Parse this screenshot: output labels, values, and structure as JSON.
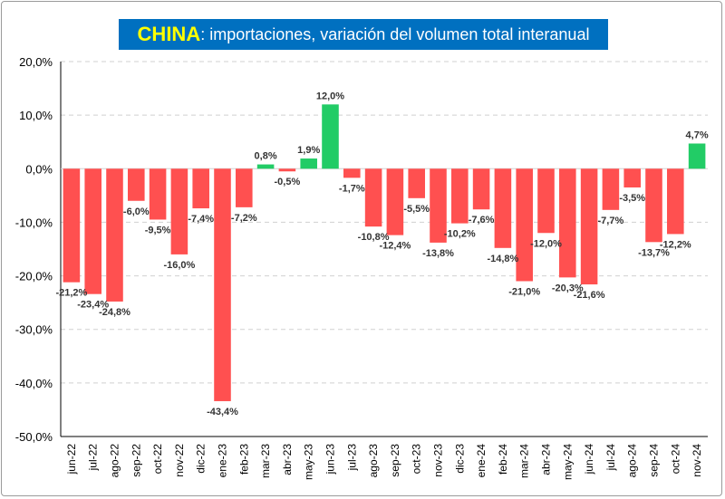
{
  "chart_data": {
    "type": "bar",
    "title_country": "CHINA",
    "title_rest": ": importaciones, variación del volumen total interanual",
    "ylim": [
      -50,
      20
    ],
    "yticks": [
      "20,0%",
      "10,0%",
      "0,0%",
      "-10,0%",
      "-20,0%",
      "-30,0%",
      "-40,0%",
      "-50,0%"
    ],
    "ytick_values": [
      20,
      10,
      0,
      -10,
      -20,
      -30,
      -40,
      -50
    ],
    "grid": "horizontal dashed",
    "categories": [
      "jun-22",
      "jul-22",
      "ago-22",
      "sep-22",
      "oct-22",
      "nov-22",
      "dic-22",
      "ene-23",
      "feb-23",
      "mar-23",
      "abr-23",
      "may-23",
      "jun-23",
      "jul-23",
      "ago-23",
      "sep-23",
      "oct-23",
      "nov-23",
      "dic-23",
      "ene-24",
      "feb-24",
      "mar-24",
      "abr-24",
      "may-24",
      "jun-24",
      "jul-24",
      "ago-24",
      "sep-24",
      "oct-24",
      "nov-24"
    ],
    "values": [
      -21.2,
      -23.4,
      -24.8,
      -6.0,
      -9.5,
      -16.0,
      -7.4,
      -43.4,
      -7.2,
      0.8,
      -0.5,
      1.9,
      12.0,
      -1.7,
      -10.8,
      -12.4,
      -5.5,
      -13.8,
      -10.2,
      -7.6,
      -14.8,
      -21.0,
      -12.0,
      -20.3,
      -21.6,
      -7.7,
      -3.5,
      -13.7,
      -12.2,
      4.7
    ],
    "labels": [
      "-21,2%",
      "-23,4%",
      "-24,8%",
      "-6,0%",
      "-9,5%",
      "-16,0%",
      "-7,4%",
      "-43,4%",
      "-7,2%",
      "0,8%",
      "-0,5%",
      "1,9%",
      "12,0%",
      "-1,7%",
      "-10,8%",
      "-12,4%",
      "-5,5%",
      "-13,8%",
      "-10,2%",
      "-7,6%",
      "-14,8%",
      "-21,0%",
      "-12,0%",
      "-20,3%",
      "-21,6%",
      "-7,7%",
      "-3,5%",
      "-13,7%",
      "-12,2%",
      "4,7%"
    ],
    "colors": {
      "positive": "#22cc66",
      "negative": "#ff5050",
      "title_bg": "#0070c0",
      "title_country": "#ffff00",
      "title_text": "#ffffff"
    }
  }
}
